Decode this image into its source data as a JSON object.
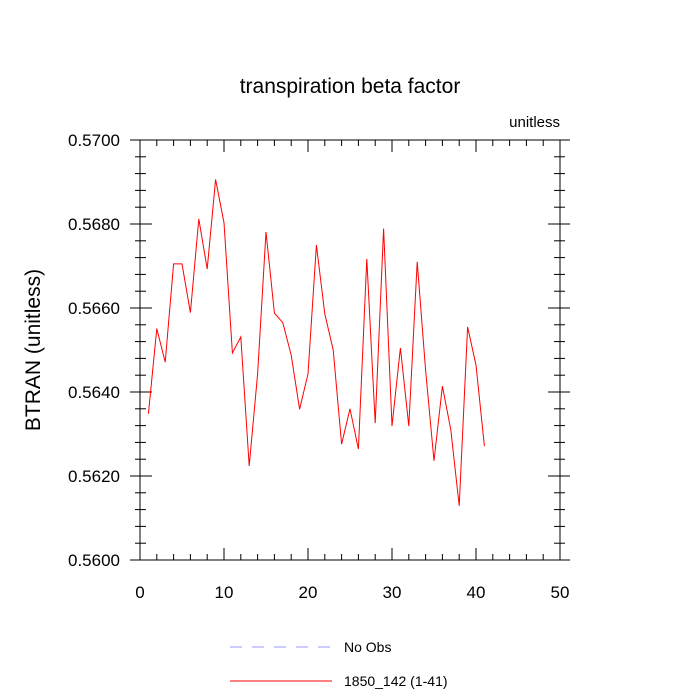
{
  "chart_data": {
    "type": "line",
    "title": "transpiration beta factor",
    "units_label": "unitless",
    "ylabel": "BTRAN  (unitless)",
    "xlabel": "",
    "xlim": [
      0,
      50
    ],
    "ylim": [
      0.56,
      0.57
    ],
    "x_ticks": [
      0,
      10,
      20,
      30,
      40,
      50
    ],
    "x_tick_labels": [
      "0",
      "10",
      "20",
      "30",
      "40",
      "50"
    ],
    "y_ticks": [
      0.56,
      0.562,
      0.564,
      0.566,
      0.568,
      0.57
    ],
    "y_tick_labels": [
      "0.5600",
      "0.5620",
      "0.5640",
      "0.5660",
      "0.5680",
      "0.5700"
    ],
    "grid": false,
    "legend_position": "bottom",
    "series": [
      {
        "name": "No Obs",
        "color": "#9999ff",
        "dashed": true,
        "x": [],
        "values": []
      },
      {
        "name": "1850_142 (1-41)",
        "color": "#ff0000",
        "dashed": false,
        "x": [
          1,
          2,
          3,
          4,
          5,
          6,
          7,
          8,
          9,
          10,
          11,
          12,
          13,
          14,
          15,
          16,
          17,
          18,
          19,
          20,
          21,
          22,
          23,
          24,
          25,
          26,
          27,
          28,
          29,
          30,
          31,
          32,
          33,
          34,
          35,
          36,
          37,
          38,
          39,
          40,
          41
        ],
        "values": [
          0.56348,
          0.56551,
          0.56471,
          0.56705,
          0.56705,
          0.56589,
          0.56812,
          0.56693,
          0.56906,
          0.56803,
          0.56493,
          0.56531,
          0.56224,
          0.56443,
          0.56781,
          0.56588,
          0.56565,
          0.56488,
          0.56359,
          0.56443,
          0.5675,
          0.56586,
          0.565,
          0.56276,
          0.5636,
          0.56264,
          0.56717,
          0.56326,
          0.56789,
          0.56319,
          0.56505,
          0.56319,
          0.5671,
          0.56452,
          0.56236,
          0.56414,
          0.5631,
          0.56129,
          0.56555,
          0.56464,
          0.56271
        ]
      }
    ]
  }
}
